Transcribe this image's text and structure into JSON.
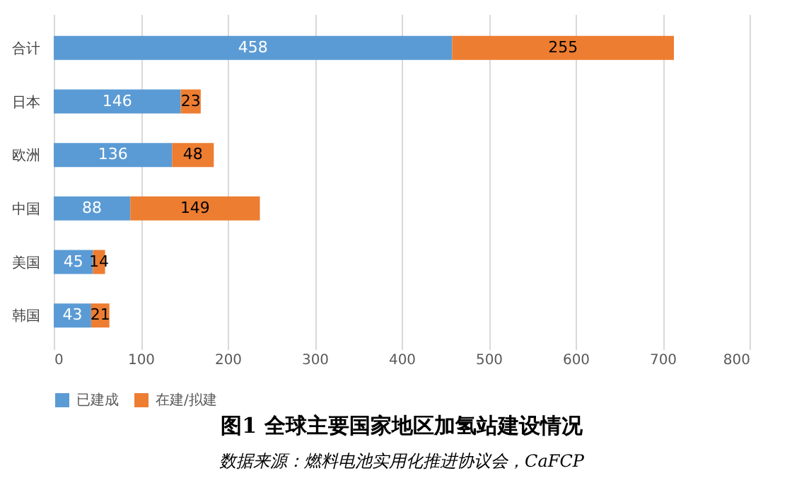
{
  "chart_data": {
    "type": "bar",
    "orientation": "horizontal",
    "stacked": true,
    "title": "图1 全球主要国家地区加氢站建设情况",
    "categories": [
      "合计",
      "日本",
      "欧洲",
      "中国",
      "美国",
      "韩国"
    ],
    "series": [
      {
        "name": "已建成",
        "color": "#5b9bd5",
        "values": [
          458,
          146,
          136,
          88,
          45,
          43
        ]
      },
      {
        "name": "在建/拟建",
        "color": "#ed7d31",
        "values": [
          255,
          23,
          48,
          149,
          14,
          21
        ]
      }
    ],
    "xlim": [
      0,
      800
    ],
    "xticks": [
      0,
      100,
      200,
      300,
      400,
      500,
      600,
      700,
      800
    ],
    "grid": "x",
    "legend": "bottom",
    "data_labels": true,
    "annotations": [
      "数据来源：燃料电池实用化推进协议会，CaFCP"
    ]
  }
}
